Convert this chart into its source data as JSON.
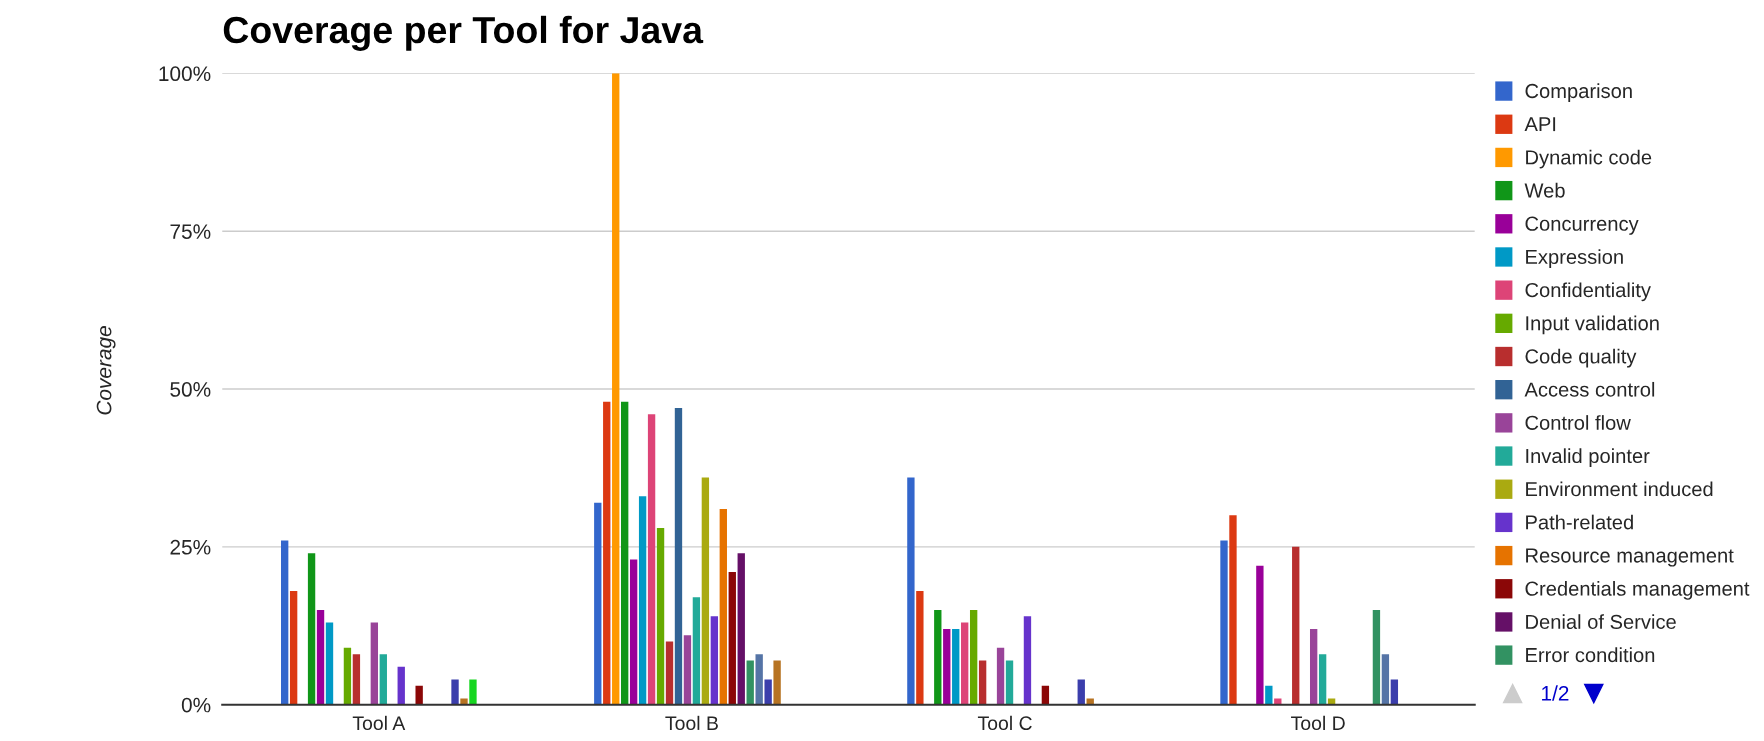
{
  "chart_data": {
    "type": "bar",
    "title": "Coverage per Tool for Java",
    "ylabel": "Coverage",
    "categories": [
      "Tool A",
      "Tool B",
      "Tool C",
      "Tool D"
    ],
    "ylim": [
      0,
      100
    ],
    "yticks": [
      {
        "value": 0,
        "label": "0%"
      },
      {
        "value": 25,
        "label": "25%"
      },
      {
        "value": 50,
        "label": "50%"
      },
      {
        "value": 75,
        "label": "75%"
      },
      {
        "value": 100,
        "label": "100%"
      }
    ],
    "grid": "y",
    "legend": "right",
    "annotations": [
      "1/2"
    ],
    "series": [
      {
        "name": "Comparison",
        "color": "#3366cc",
        "values": [
          26,
          32,
          36,
          26
        ]
      },
      {
        "name": "API",
        "color": "#dc3912",
        "values": [
          18,
          48,
          18,
          30
        ]
      },
      {
        "name": "Dynamic code",
        "color": "#ff9900",
        "values": [
          0,
          100,
          0,
          0
        ]
      },
      {
        "name": "Web",
        "color": "#109618",
        "values": [
          24,
          48,
          15,
          0
        ]
      },
      {
        "name": "Concurrency",
        "color": "#990099",
        "values": [
          15,
          23,
          12,
          22
        ]
      },
      {
        "name": "Expression",
        "color": "#0099c6",
        "values": [
          13,
          33,
          12,
          3
        ]
      },
      {
        "name": "Confidentiality",
        "color": "#dd4477",
        "values": [
          0,
          46,
          13,
          1
        ]
      },
      {
        "name": "Input validation",
        "color": "#66aa00",
        "values": [
          9,
          28,
          15,
          0
        ]
      },
      {
        "name": "Code quality",
        "color": "#b82e2e",
        "values": [
          8,
          10,
          7,
          25
        ]
      },
      {
        "name": "Access control",
        "color": "#316395",
        "values": [
          0,
          47,
          0,
          0
        ]
      },
      {
        "name": "Control flow",
        "color": "#994499",
        "values": [
          13,
          11,
          9,
          12
        ]
      },
      {
        "name": "Invalid pointer",
        "color": "#22aa99",
        "values": [
          8,
          17,
          7,
          8
        ]
      },
      {
        "name": "Environment induced",
        "color": "#aaaa11",
        "values": [
          0,
          36,
          0,
          1
        ]
      },
      {
        "name": "Path-related",
        "color": "#6633cc",
        "values": [
          6,
          14,
          14,
          0
        ]
      },
      {
        "name": "Resource management",
        "color": "#e67300",
        "values": [
          0,
          31,
          0,
          0
        ]
      },
      {
        "name": "Credentials management",
        "color": "#8b0707",
        "values": [
          3,
          21,
          3,
          0
        ]
      },
      {
        "name": "Denial of Service",
        "color": "#651067",
        "values": [
          0,
          24,
          0,
          0
        ]
      },
      {
        "name": "Error condition",
        "color": "#329262",
        "values": [
          0,
          7,
          0,
          15
        ]
      },
      {
        "color": "#5574a6",
        "values": [
          0,
          8,
          0,
          8
        ]
      },
      {
        "color": "#3b3eac",
        "values": [
          4,
          4,
          4,
          4
        ]
      },
      {
        "color": "#b77322",
        "values": [
          1,
          7,
          1,
          0
        ]
      },
      {
        "color": "#16d620",
        "values": [
          4,
          0,
          0,
          0
        ]
      }
    ]
  }
}
